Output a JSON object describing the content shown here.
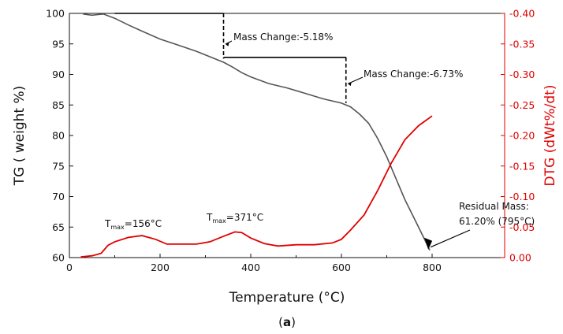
{
  "chart_data": {
    "type": "line",
    "xlabel": "Temperature (°C)",
    "ylabel_left": "TG ( weight %)",
    "ylabel_right": "DTG (dWt%/dt)",
    "subfigure_label_open": "(",
    "subfigure_label_letter": "a",
    "subfigure_label_close": ")",
    "xlim": [
      0,
      960
    ],
    "ylim_left": [
      60,
      100
    ],
    "ylim_right": [
      0.0,
      -0.4
    ],
    "x_ticks": [
      0,
      200,
      400,
      600,
      800
    ],
    "y_left_ticks": [
      60,
      65,
      70,
      75,
      80,
      85,
      90,
      95,
      100
    ],
    "y_right_ticks": [
      "0.00",
      "-0.05",
      "-0.10",
      "-0.15",
      "-0.20",
      "-0.25",
      "-0.30",
      "-0.35",
      "-0.40"
    ],
    "y_right_tick_values": [
      0.0,
      -0.05,
      -0.1,
      -0.15,
      -0.2,
      -0.25,
      -0.3,
      -0.35,
      -0.4
    ],
    "grid": false,
    "colors": {
      "tg": "#555555",
      "dtg": "#e00000",
      "annotation": "#000000",
      "right_axis": "#e00000"
    },
    "series": [
      {
        "name": "TG",
        "axis": "left",
        "x": [
          30,
          50,
          75,
          100,
          130,
          160,
          200,
          240,
          280,
          320,
          340,
          360,
          380,
          400,
          440,
          480,
          520,
          560,
          600,
          620,
          640,
          660,
          680,
          700,
          720,
          740,
          760,
          780,
          795
        ],
        "y": [
          99.9,
          99.7,
          99.9,
          99.2,
          98.1,
          97.1,
          95.8,
          94.8,
          93.8,
          92.6,
          92.0,
          91.2,
          90.3,
          89.6,
          88.5,
          87.8,
          86.9,
          86.0,
          85.3,
          84.7,
          83.5,
          82.0,
          79.5,
          76.5,
          73.0,
          69.5,
          66.5,
          63.5,
          61.2
        ]
      },
      {
        "name": "DTG",
        "axis": "right",
        "x": [
          25,
          50,
          70,
          85,
          100,
          130,
          160,
          190,
          215,
          250,
          280,
          310,
          340,
          365,
          380,
          400,
          430,
          460,
          500,
          540,
          580,
          600,
          620,
          650,
          680,
          710,
          740,
          770,
          800
        ],
        "y": [
          -0.001,
          -0.003,
          -0.007,
          -0.02,
          -0.026,
          -0.033,
          -0.036,
          -0.03,
          -0.022,
          -0.022,
          -0.022,
          -0.026,
          -0.035,
          -0.042,
          -0.041,
          -0.032,
          -0.023,
          -0.019,
          -0.021,
          -0.021,
          -0.024,
          -0.03,
          -0.045,
          -0.07,
          -0.11,
          -0.155,
          -0.193,
          -0.216,
          -0.232
        ]
      }
    ],
    "annotations": {
      "mass_change_1": "Mass Change:-5.18%",
      "mass_change_2": "Mass Change:-6.73%",
      "residual_mass_1": "Residual Mass:",
      "residual_mass_2": "61.20% (795°C)",
      "tmax1_prefix": "T",
      "tmax1_sub": "max",
      "tmax1_value": "=156°C",
      "tmax2_prefix": "T",
      "tmax2_sub": "max",
      "tmax2_value": "=371°C"
    },
    "step_markers": [
      {
        "x_start": 100,
        "x_end": 340,
        "y_top": 100,
        "y_bottom": 92.6
      },
      {
        "x_start": 340,
        "x_end": 610,
        "y_top": 92.8,
        "y_bottom": 85.3
      }
    ],
    "residual_point": {
      "x": 795,
      "y": 61.2
    }
  }
}
